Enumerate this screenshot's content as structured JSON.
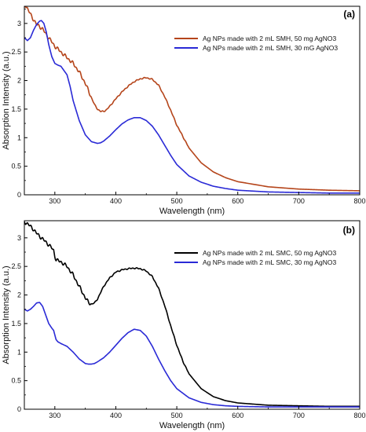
{
  "chart_data": [
    {
      "type": "line",
      "panel_label": "(a)",
      "xlabel": "Wavelength (nm)",
      "ylabel": "Absorption Intensity (a.u.)",
      "xlim": [
        250,
        800
      ],
      "ylim": [
        0,
        3.3
      ],
      "x_ticks": [
        300,
        400,
        500,
        600,
        700,
        800
      ],
      "y_ticks": [
        0,
        0.5,
        1,
        1.5,
        2,
        2.5,
        3
      ],
      "y_tick_labels": [
        "0",
        "0.5",
        "1",
        "1.5",
        "2",
        "2.5",
        "3"
      ],
      "grid": false,
      "legend_position": "top-right",
      "series": [
        {
          "name": "Ag NPs made with 2 mL SMH, 50 mg AgNO3",
          "color": "#b5451b",
          "noisy": true,
          "x": [
            250,
            253,
            256,
            260,
            265,
            270,
            275,
            280,
            285,
            290,
            300,
            310,
            320,
            330,
            340,
            350,
            360,
            365,
            370,
            375,
            380,
            385,
            390,
            400,
            410,
            420,
            430,
            440,
            450,
            460,
            470,
            480,
            490,
            500,
            520,
            540,
            560,
            580,
            600,
            650,
            700,
            750,
            800
          ],
          "y": [
            3.35,
            3.3,
            3.24,
            3.16,
            3.07,
            2.98,
            2.95,
            2.9,
            2.82,
            2.75,
            2.6,
            2.5,
            2.4,
            2.3,
            2.15,
            1.95,
            1.7,
            1.58,
            1.5,
            1.46,
            1.46,
            1.49,
            1.55,
            1.68,
            1.8,
            1.9,
            1.98,
            2.03,
            2.05,
            2.02,
            1.92,
            1.72,
            1.48,
            1.22,
            0.82,
            0.56,
            0.4,
            0.3,
            0.23,
            0.14,
            0.1,
            0.08,
            0.07
          ]
        },
        {
          "name": "Ag NPs made with 2 mL SMH, 30 mG AgNO3",
          "color": "#2a2ad6",
          "noisy": false,
          "x": [
            250,
            255,
            260,
            265,
            270,
            275,
            278,
            282,
            286,
            290,
            295,
            300,
            305,
            310,
            320,
            325,
            330,
            340,
            350,
            360,
            370,
            375,
            380,
            390,
            400,
            410,
            420,
            430,
            440,
            450,
            460,
            470,
            480,
            490,
            500,
            520,
            540,
            560,
            580,
            600,
            650,
            700,
            750,
            800
          ],
          "y": [
            2.75,
            2.7,
            2.75,
            2.88,
            2.98,
            3.04,
            3.05,
            3.0,
            2.85,
            2.63,
            2.42,
            2.3,
            2.27,
            2.25,
            2.1,
            1.9,
            1.65,
            1.3,
            1.05,
            0.93,
            0.9,
            0.91,
            0.94,
            1.03,
            1.14,
            1.24,
            1.31,
            1.35,
            1.35,
            1.3,
            1.2,
            1.05,
            0.87,
            0.69,
            0.53,
            0.33,
            0.22,
            0.15,
            0.11,
            0.08,
            0.05,
            0.04,
            0.03,
            0.03
          ]
        }
      ]
    },
    {
      "type": "line",
      "panel_label": "(b)",
      "xlabel": "Wavelength (nm)",
      "ylabel": "Absorption Intensity (a.u.)",
      "xlim": [
        250,
        800
      ],
      "ylim": [
        0,
        3.3
      ],
      "x_ticks": [
        300,
        400,
        500,
        600,
        700,
        800
      ],
      "y_ticks": [
        0,
        0.5,
        1,
        1.5,
        2,
        2.5,
        3
      ],
      "y_tick_labels": [
        "0",
        "0.5",
        "1",
        "1.5",
        "2",
        "2.5",
        "3"
      ],
      "grid": false,
      "legend_position": "top-right",
      "series": [
        {
          "name": "Ag NPs made with 2 mL SMC, 50 mg AgNO3",
          "color": "#000000",
          "noisy": true,
          "x": [
            250,
            255,
            260,
            265,
            270,
            280,
            290,
            295,
            298,
            300,
            302,
            305,
            310,
            320,
            330,
            340,
            350,
            355,
            360,
            365,
            370,
            375,
            380,
            390,
            400,
            410,
            420,
            430,
            440,
            450,
            460,
            470,
            480,
            490,
            500,
            510,
            520,
            540,
            560,
            580,
            600,
            650,
            700,
            750,
            800
          ],
          "y": [
            3.28,
            3.25,
            3.2,
            3.15,
            3.08,
            2.98,
            2.88,
            2.82,
            2.78,
            2.68,
            2.62,
            2.6,
            2.58,
            2.5,
            2.35,
            2.15,
            1.95,
            1.87,
            1.84,
            1.86,
            1.93,
            2.04,
            2.15,
            2.3,
            2.4,
            2.44,
            2.46,
            2.47,
            2.46,
            2.42,
            2.32,
            2.12,
            1.82,
            1.46,
            1.12,
            0.84,
            0.62,
            0.36,
            0.22,
            0.15,
            0.11,
            0.07,
            0.06,
            0.05,
            0.05
          ]
        },
        {
          "name": "Ag NPs made with 2 mL SMC, 30 mg AgNO3",
          "color": "#2a2ad6",
          "noisy": false,
          "x": [
            250,
            255,
            260,
            265,
            270,
            275,
            280,
            285,
            290,
            295,
            298,
            300,
            302,
            305,
            310,
            320,
            330,
            340,
            350,
            355,
            360,
            365,
            370,
            380,
            390,
            400,
            410,
            420,
            430,
            440,
            450,
            460,
            470,
            480,
            490,
            500,
            520,
            540,
            560,
            580,
            600,
            650,
            700,
            750,
            800
          ],
          "y": [
            1.75,
            1.72,
            1.75,
            1.8,
            1.86,
            1.87,
            1.8,
            1.65,
            1.5,
            1.42,
            1.38,
            1.3,
            1.22,
            1.18,
            1.15,
            1.1,
            1.0,
            0.88,
            0.8,
            0.79,
            0.79,
            0.8,
            0.83,
            0.9,
            1.0,
            1.12,
            1.24,
            1.34,
            1.4,
            1.38,
            1.28,
            1.1,
            0.88,
            0.68,
            0.5,
            0.36,
            0.2,
            0.12,
            0.08,
            0.06,
            0.05,
            0.04,
            0.04,
            0.04,
            0.04
          ]
        }
      ]
    }
  ]
}
